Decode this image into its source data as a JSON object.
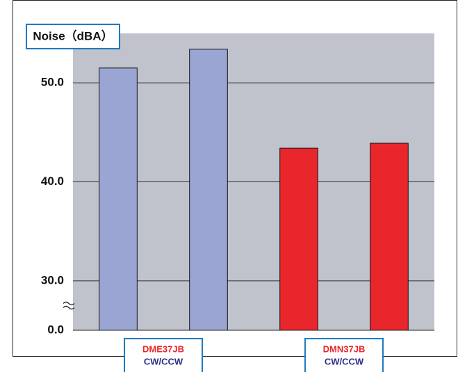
{
  "chart_data": {
    "type": "bar",
    "y_label": "Noise（dBA）",
    "ylim": [
      0,
      55
    ],
    "yticks": [
      {
        "value": 0,
        "label": "0.0"
      },
      {
        "value": 30,
        "label": "30.0"
      },
      {
        "value": 40,
        "label": "40.0"
      },
      {
        "value": 50,
        "label": "50.0"
      }
    ],
    "axis_break": true,
    "grid": true,
    "groups": [
      {
        "name": "DME37JB",
        "subtitle": "CW/CCW",
        "color": "#9aa5d3",
        "values": [
          51.5,
          53.4
        ]
      },
      {
        "name": "DMN37JB",
        "subtitle": "CW/CCW",
        "color": "#e8262b",
        "values": [
          43.4,
          43.9
        ]
      }
    ]
  }
}
